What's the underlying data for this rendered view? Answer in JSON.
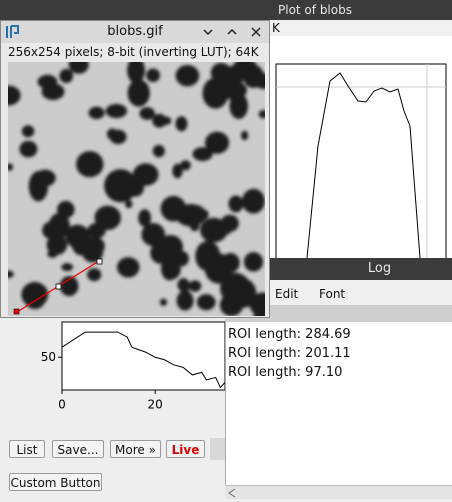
{
  "plot_window": {
    "title": "Plot of blobs",
    "menu_fragment": "K"
  },
  "image_window": {
    "title": "blobs.gif",
    "info": "256x254 pixels; 8-bit (inverting LUT); 64K"
  },
  "log_window": {
    "title": "Log",
    "menu": [
      "Edit",
      "Font"
    ],
    "lines": [
      "ROI length: 284.69",
      "ROI length: 201.11",
      "ROI length: 97.10"
    ]
  },
  "profile_plot": {
    "type": "line",
    "xlim": [
      0,
      35
    ],
    "ylim": [
      37,
      64
    ],
    "xticks": [
      0,
      20
    ],
    "yticks": [
      50
    ],
    "x": [
      0,
      5,
      12,
      14,
      15,
      18,
      20,
      22,
      24,
      26,
      28,
      30,
      31,
      33,
      34,
      35
    ],
    "values": [
      54,
      60,
      60,
      58,
      54,
      52,
      50,
      49,
      47,
      46,
      43,
      44,
      41,
      42,
      38,
      40
    ],
    "buttons": [
      "List",
      "Save...",
      "More »",
      "Live"
    ],
    "custom_button": "Custom Button"
  }
}
